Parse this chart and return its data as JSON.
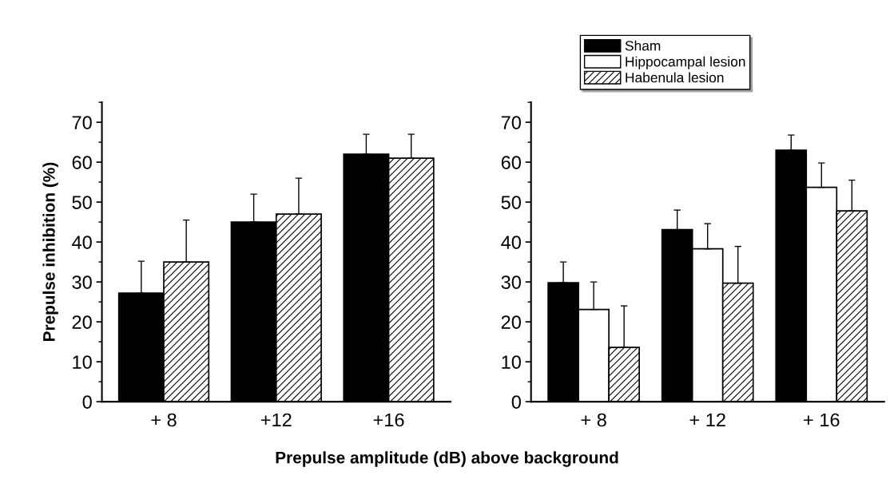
{
  "chart_data": [
    {
      "type": "bar",
      "ylabel": "Prepulse inhibition (%)",
      "categories": [
        "+ 8",
        "+12",
        "+16"
      ],
      "ylim": [
        0,
        75
      ],
      "yticks": [
        0,
        10,
        20,
        30,
        40,
        50,
        60,
        70
      ],
      "grid": false,
      "legend": false,
      "series": [
        {
          "color": "#000000",
          "values": [
            27.2,
            45,
            62
          ],
          "errors": [
            [
              27.2,
              35.2
            ],
            [
              45,
              52
            ],
            [
              62,
              67
            ]
          ]
        },
        {
          "color": "#ffffff",
          "values": [
            null,
            null,
            null
          ]
        },
        {
          "color": "#000000",
          "values": [
            35,
            47,
            61
          ],
          "errors": [
            [
              35,
              45.5
            ],
            [
              47,
              56
            ],
            [
              61,
              67
            ]
          ]
        }
      ]
    },
    {
      "type": "bar",
      "xlabel": "Prepulse amplitude (dB) above background",
      "categories": [
        "+ 8",
        "+ 12",
        "+ 16"
      ],
      "ylim": [
        0,
        75
      ],
      "yticks": [
        0,
        10,
        20,
        30,
        40,
        50,
        60,
        70
      ],
      "grid": false,
      "legend": "top left",
      "series": [
        {
          "name": "Sham",
          "color": "#000000",
          "values": [
            29.8,
            43.1,
            63
          ],
          "errors": [
            [
              29.8,
              35
            ],
            [
              43.1,
              48
            ],
            [
              63,
              66.8
            ]
          ]
        },
        {
          "name": "Hippocampal lesion",
          "color": "#ffffff",
          "values": [
            23.1,
            38.3,
            53.7
          ],
          "errors": [
            [
              23.1,
              30
            ],
            [
              38.3,
              44.6
            ],
            [
              53.7,
              59.8
            ]
          ]
        },
        {
          "name": "Habenula lesion",
          "color": "#000000",
          "values": [
            13.6,
            29.7,
            47.8
          ],
          "errors": [
            [
              13.6,
              24
            ],
            [
              29.7,
              38.9
            ],
            [
              47.8,
              55.5
            ]
          ]
        }
      ]
    }
  ]
}
